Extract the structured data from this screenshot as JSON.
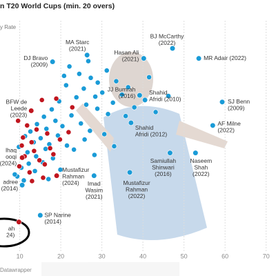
{
  "chart_data": {
    "type": "scatter",
    "title": "n T20 World Cups (min. 20 overs)",
    "y_label": "y Rate",
    "source": "Datawrapper",
    "xlim": [
      5.2,
      72.4
    ],
    "ylim": [
      0,
      35
    ],
    "xticks": [
      10,
      20,
      30,
      40,
      50,
      60,
      70
    ],
    "grid": true,
    "series": [
      {
        "color": "#1a9bd7",
        "x": [
          22.1,
          24.5,
          27.3,
          29.0,
          31.2,
          33.5,
          25.6,
          28.4,
          30.1,
          32.7,
          34.9,
          21.3,
          23.8,
          26.2,
          28.9,
          31.5,
          19.6,
          17.8,
          15.9,
          14.2,
          12.6,
          11.3,
          16.5,
          18.7,
          20.4,
          22.6,
          24.9,
          27.1,
          13.4,
          15.1,
          17.2,
          19.3,
          21.5,
          23.2,
          9.8,
          11.9,
          14.0,
          16.3,
          18.1,
          12.2,
          10.4,
          13.7,
          15.6,
          9.4,
          11.0,
          25.8,
          30.6,
          35.8,
          37.9,
          43.1,
          46.2,
          28.2,
          33.0,
          36.4,
          20.8,
          26.7,
          41.5,
          19.9,
          17.0,
          8.8
        ],
        "y": [
          29.2,
          28.1,
          27.5,
          26.8,
          28.6,
          27.0,
          25.9,
          24.7,
          25.3,
          23.8,
          25.0,
          26.4,
          24.6,
          23.5,
          22.9,
          22.1,
          24.0,
          22.8,
          21.7,
          20.6,
          19.5,
          18.8,
          19.9,
          21.1,
          20.3,
          21.9,
          20.7,
          19.6,
          17.9,
          18.5,
          17.6,
          18.9,
          17.4,
          16.8,
          17.2,
          16.4,
          15.8,
          16.9,
          15.5,
          14.7,
          14.1,
          13.6,
          14.9,
          12.8,
          12.2,
          18.3,
          19.1,
          21.8,
          23.1,
          22.4,
          24.8,
          16.0,
          17.3,
          26.1,
          27.8,
          30.0,
          27.6,
          13.8,
          12.4,
          13.1
        ]
      },
      {
        "color": "#c0161f",
        "x": [
          15.4,
          18.9,
          9.6,
          11.8,
          14.1,
          16.7,
          12.9,
          10.5,
          13.5,
          17.4,
          19.8,
          11.2,
          14.8,
          16.1,
          9.9,
          12.4,
          18.2,
          15.7,
          13.0,
          21.9,
          10.8,
          22.8
        ],
        "y": [
          24.2,
          24.4,
          21.1,
          20.4,
          19.8,
          19.2,
          17.9,
          17.4,
          16.6,
          17.0,
          18.3,
          15.8,
          15.2,
          14.6,
          14.3,
          13.4,
          16.1,
          12.6,
          12.1,
          19.4,
          18.6,
          23.1
        ]
      }
    ],
    "labeled": [
      {
        "label": [
          "MA Starc",
          "(2021)"
        ],
        "x": 26.4,
        "y": 30.9,
        "color": "#1a9bd7"
      },
      {
        "label": [
          "BJ McCarthy",
          "(2022)"
        ],
        "x": 47.2,
        "y": 31.9,
        "color": "#1a9bd7"
      },
      {
        "label": [
          "Hasan Ali",
          "(2021)"
        ],
        "x": 40.2,
        "y": 30.4,
        "color": "#1a9bd7"
      },
      {
        "label": [
          "MR Adair (2022)"
        ],
        "x": 53.6,
        "y": 30.4,
        "color": "#1a9bd7"
      },
      {
        "label": [
          "DJ Bravo",
          "(2009)"
        ],
        "x": 18.0,
        "y": 29.9,
        "color": "#1a9bd7"
      },
      {
        "label": [
          "JJ Bumrah",
          "(2016)"
        ],
        "x": 39.2,
        "y": 24.9,
        "color": "#1a9bd7"
      },
      {
        "label": [
          "Shahid",
          "Afridi (2010)"
        ],
        "x": 40.5,
        "y": 24.2,
        "color": "#1a9bd7"
      },
      {
        "label": [
          "SJ Benn",
          "(2009)"
        ],
        "x": 59.3,
        "y": 23.9,
        "color": "#1a9bd7"
      },
      {
        "label": [
          "BFW de",
          "Leede",
          "(2023)"
        ],
        "x": 12.8,
        "y": 22.6,
        "color": "#c0161f"
      },
      {
        "label": [
          "AF Milne",
          "(2022)"
        ],
        "x": 57.0,
        "y": 20.4,
        "color": "#1a9bd7"
      },
      {
        "label": [
          "Shahid",
          "Afridi (2012)"
        ],
        "x": 37.1,
        "y": 20.8,
        "color": "#1a9bd7"
      },
      {
        "label": [
          "Samiullah",
          "Shinwari",
          "(2016)"
        ],
        "x": 46.6,
        "y": 16.3,
        "color": "#1a9bd7"
      },
      {
        "label": [
          "Naseem",
          "Shah",
          "(2022)"
        ],
        "x": 52.8,
        "y": 16.3,
        "color": "#1a9bd7"
      },
      {
        "label": [
          "Imad",
          "Wasim",
          "(2021)"
        ],
        "x": 28.1,
        "y": 12.9,
        "color": "#1a9bd7"
      },
      {
        "label": [
          "Mustafizur",
          "Rahman",
          "(2022)"
        ],
        "x": 36.8,
        "y": 13.4,
        "color": "#1a9bd7"
      },
      {
        "label": [
          "Mustafizur",
          "Rahman",
          "(2024)"
        ],
        "x": 19.0,
        "y": 12.9,
        "color": "#c0161f"
      },
      {
        "label": [
          "lhaq",
          "ooqi",
          "(2024)"
        ],
        "x": 10.6,
        "y": 15.6,
        "color": "#c0161f"
      },
      {
        "label": [
          "adree",
          "(2014)"
        ],
        "x": 10.6,
        "y": 11.5,
        "color": "#1a9bd7"
      },
      {
        "label": [
          "SP Narine",
          "(2014)"
        ],
        "x": 15.0,
        "y": 7.0,
        "color": "#1a9bd7"
      },
      {
        "label": [
          "ah",
          "24)"
        ],
        "x": 9.8,
        "y": 6.0,
        "color": "#c0161f"
      }
    ]
  }
}
